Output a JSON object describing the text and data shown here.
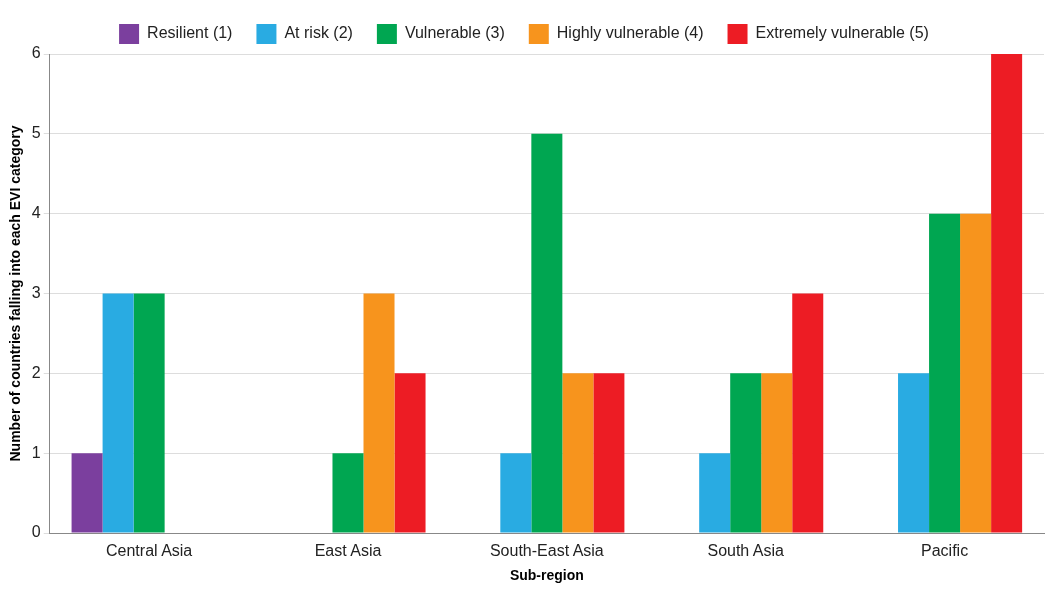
{
  "chart_data": {
    "type": "bar",
    "xlabel": "Sub-region",
    "ylabel": "Number of countries falling into each EVI category",
    "categories": [
      "Central Asia",
      "East Asia",
      "South-East Asia",
      "South Asia",
      "Pacific"
    ],
    "series": [
      {
        "name": "Resilient (1)",
        "color": "#7b3f9e",
        "values": [
          1,
          0,
          0,
          0,
          0
        ]
      },
      {
        "name": "At risk (2)",
        "color": "#29abe2",
        "values": [
          3,
          0,
          1,
          1,
          2
        ]
      },
      {
        "name": "Vulnerable (3)",
        "color": "#00a651",
        "values": [
          3,
          1,
          5,
          2,
          4
        ]
      },
      {
        "name": "Highly vulnerable (4)",
        "color": "#f7941d",
        "values": [
          0,
          3,
          2,
          2,
          4
        ]
      },
      {
        "name": "Extremely vulnerable (5)",
        "color": "#ed1c24",
        "values": [
          0,
          2,
          2,
          3,
          6
        ]
      }
    ],
    "ylim": [
      0,
      6
    ],
    "yticks": [
      0,
      1,
      2,
      3,
      4,
      5,
      6
    ],
    "grid": "y",
    "legend": "top"
  }
}
